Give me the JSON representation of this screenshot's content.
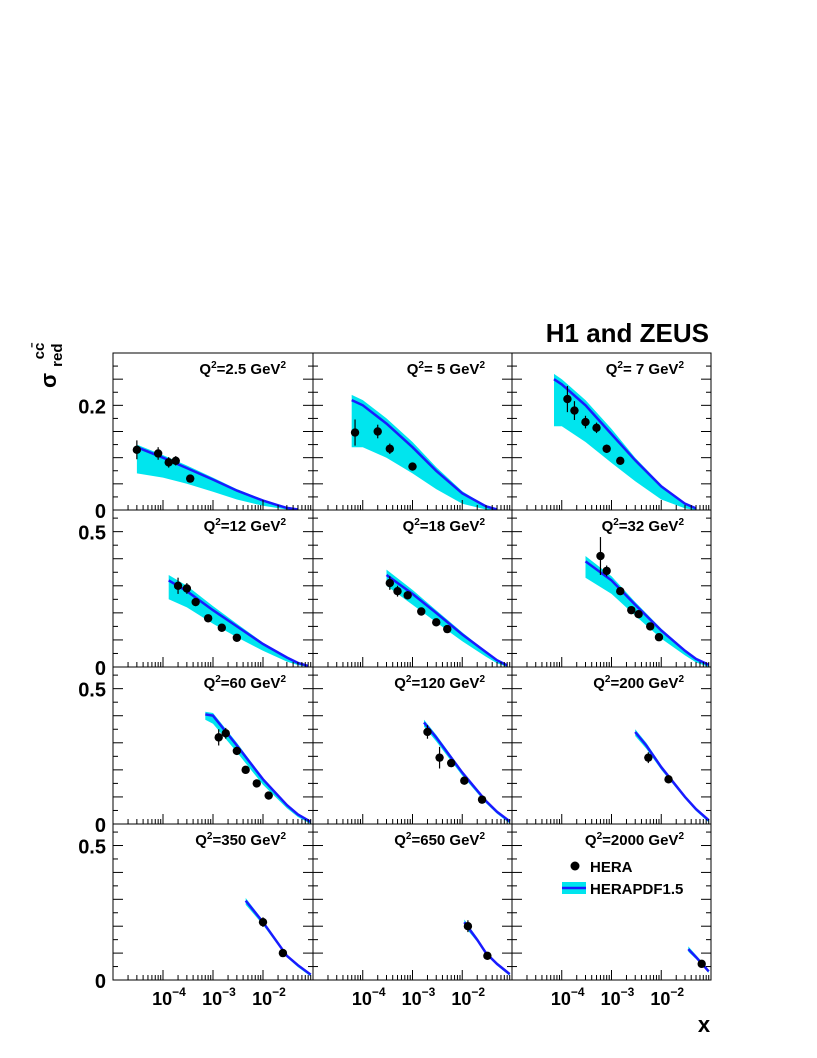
{
  "figure": {
    "title": "H1 and ZEUS",
    "ylabel": {
      "sigma": "σ",
      "superscript": "cc̄",
      "subscript": "red"
    },
    "xlabel": "x",
    "legend": {
      "data": "HERA",
      "theory": "HERAPDF1.5",
      "placement": "bottom-right panel"
    }
  },
  "chart_data": [
    {
      "type": "scatter",
      "panel": "q2-2.5",
      "label": "Q²=2.5 GeV²",
      "q2_text": "2.5",
      "ylim": [
        0,
        0.3
      ],
      "xlim": [
        1e-05,
        0.1
      ],
      "x_scale": "log",
      "yticks": [
        0,
        0.2
      ],
      "ytick_labels": [
        "0",
        "0.2"
      ],
      "xticks": [
        0.0001,
        0.001,
        0.01
      ],
      "xtick_labels": [
        "10⁻⁴",
        "10⁻³",
        "10⁻²"
      ],
      "points": [
        {
          "x": 3e-05,
          "y": 0.115,
          "err": 0.018
        },
        {
          "x": 8e-05,
          "y": 0.108,
          "err": 0.012
        },
        {
          "x": 0.00013,
          "y": 0.091,
          "err": 0.01
        },
        {
          "x": 0.00018,
          "y": 0.094,
          "err": 0.009
        },
        {
          "x": 0.00035,
          "y": 0.06,
          "err": 0.006
        }
      ],
      "curve": [
        [
          3e-05,
          0.12
        ],
        [
          0.0001,
          0.1
        ],
        [
          0.0003,
          0.08
        ],
        [
          0.001,
          0.058
        ],
        [
          0.003,
          0.037
        ],
        [
          0.01,
          0.018
        ],
        [
          0.02,
          0.009
        ],
        [
          0.03,
          0.004
        ],
        [
          0.05,
          0.001
        ]
      ],
      "band": [
        [
          3e-05,
          0.125,
          0.07
        ],
        [
          0.0001,
          0.105,
          0.062
        ],
        [
          0.0003,
          0.085,
          0.05
        ],
        [
          0.001,
          0.062,
          0.035
        ],
        [
          0.003,
          0.04,
          0.02
        ],
        [
          0.01,
          0.02,
          0.008
        ],
        [
          0.03,
          0.005,
          0.001
        ],
        [
          0.05,
          0.001,
          0
        ]
      ]
    },
    {
      "type": "scatter",
      "panel": "q2-5",
      "label": "Q²= 5 GeV²",
      "q2_text": " 5",
      "ylim": [
        0,
        0.3
      ],
      "xlim": [
        1e-05,
        0.1
      ],
      "x_scale": "log",
      "points": [
        {
          "x": 7e-05,
          "y": 0.148,
          "err": 0.025
        },
        {
          "x": 0.0002,
          "y": 0.15,
          "err": 0.013
        },
        {
          "x": 0.00035,
          "y": 0.117,
          "err": 0.01
        },
        {
          "x": 0.001,
          "y": 0.083,
          "err": 0.007
        }
      ],
      "curve": [
        [
          6e-05,
          0.21
        ],
        [
          0.0001,
          0.2
        ],
        [
          0.0003,
          0.165
        ],
        [
          0.001,
          0.12
        ],
        [
          0.003,
          0.075
        ],
        [
          0.01,
          0.032
        ],
        [
          0.03,
          0.007
        ],
        [
          0.05,
          0.001
        ]
      ],
      "band": [
        [
          6e-05,
          0.22,
          0.12
        ],
        [
          0.0001,
          0.21,
          0.12
        ],
        [
          0.0003,
          0.175,
          0.1
        ],
        [
          0.001,
          0.13,
          0.07
        ],
        [
          0.003,
          0.082,
          0.04
        ],
        [
          0.01,
          0.036,
          0.012
        ],
        [
          0.03,
          0.008,
          0.001
        ],
        [
          0.05,
          0.001,
          0
        ]
      ]
    },
    {
      "type": "scatter",
      "panel": "q2-7",
      "label": "Q²= 7 GeV²",
      "q2_text": " 7",
      "ylim": [
        0,
        0.3
      ],
      "xlim": [
        1e-05,
        0.1
      ],
      "x_scale": "log",
      "points": [
        {
          "x": 0.00013,
          "y": 0.212,
          "err": 0.025
        },
        {
          "x": 0.00018,
          "y": 0.19,
          "err": 0.018
        },
        {
          "x": 0.0003,
          "y": 0.168,
          "err": 0.012
        },
        {
          "x": 0.0005,
          "y": 0.157,
          "err": 0.01
        },
        {
          "x": 0.0008,
          "y": 0.117,
          "err": 0.008
        },
        {
          "x": 0.0015,
          "y": 0.094,
          "err": 0.007
        }
      ],
      "curve": [
        [
          7e-05,
          0.25
        ],
        [
          0.0001,
          0.24
        ],
        [
          0.0003,
          0.2
        ],
        [
          0.001,
          0.145
        ],
        [
          0.003,
          0.095
        ],
        [
          0.01,
          0.045
        ],
        [
          0.03,
          0.012
        ],
        [
          0.05,
          0.003
        ]
      ],
      "band": [
        [
          7e-05,
          0.26,
          0.16
        ],
        [
          0.0001,
          0.25,
          0.16
        ],
        [
          0.0003,
          0.21,
          0.13
        ],
        [
          0.001,
          0.155,
          0.09
        ],
        [
          0.003,
          0.1,
          0.055
        ],
        [
          0.01,
          0.048,
          0.02
        ],
        [
          0.03,
          0.013,
          0.003
        ],
        [
          0.05,
          0.003,
          0
        ]
      ]
    },
    {
      "type": "scatter",
      "panel": "q2-12",
      "label": "Q²=12 GeV²",
      "q2_text": "12",
      "ylim": [
        0,
        0.58
      ],
      "xlim": [
        1e-05,
        0.1
      ],
      "x_scale": "log",
      "yticks": [
        0,
        0.5
      ],
      "ytick_labels": [
        "0",
        "0.5"
      ],
      "points": [
        {
          "x": 0.0002,
          "y": 0.3,
          "err": 0.03
        },
        {
          "x": 0.0003,
          "y": 0.29,
          "err": 0.02
        },
        {
          "x": 0.00045,
          "y": 0.24,
          "err": 0.015
        },
        {
          "x": 0.0008,
          "y": 0.18,
          "err": 0.012
        },
        {
          "x": 0.0015,
          "y": 0.145,
          "err": 0.01
        },
        {
          "x": 0.003,
          "y": 0.108,
          "err": 0.008
        }
      ],
      "curve": [
        [
          0.00013,
          0.32
        ],
        [
          0.0003,
          0.28
        ],
        [
          0.001,
          0.21
        ],
        [
          0.003,
          0.15
        ],
        [
          0.01,
          0.085
        ],
        [
          0.03,
          0.035
        ],
        [
          0.05,
          0.015
        ],
        [
          0.08,
          0.004
        ]
      ],
      "band": [
        [
          0.00013,
          0.34,
          0.25
        ],
        [
          0.0003,
          0.3,
          0.22
        ],
        [
          0.001,
          0.225,
          0.16
        ],
        [
          0.003,
          0.16,
          0.11
        ],
        [
          0.01,
          0.09,
          0.06
        ],
        [
          0.03,
          0.038,
          0.02
        ],
        [
          0.05,
          0.016,
          0.007
        ],
        [
          0.08,
          0.004,
          0
        ]
      ]
    },
    {
      "type": "scatter",
      "panel": "q2-18",
      "label": "Q²=18 GeV²",
      "q2_text": "18",
      "ylim": [
        0,
        0.58
      ],
      "xlim": [
        1e-05,
        0.1
      ],
      "x_scale": "log",
      "points": [
        {
          "x": 0.00035,
          "y": 0.31,
          "err": 0.025
        },
        {
          "x": 0.0005,
          "y": 0.28,
          "err": 0.02
        },
        {
          "x": 0.0008,
          "y": 0.265,
          "err": 0.015
        },
        {
          "x": 0.0015,
          "y": 0.205,
          "err": 0.012
        },
        {
          "x": 0.003,
          "y": 0.165,
          "err": 0.01
        },
        {
          "x": 0.005,
          "y": 0.14,
          "err": 0.008
        }
      ],
      "curve": [
        [
          0.0003,
          0.34
        ],
        [
          0.001,
          0.27
        ],
        [
          0.003,
          0.2
        ],
        [
          0.01,
          0.12
        ],
        [
          0.03,
          0.055
        ],
        [
          0.05,
          0.025
        ],
        [
          0.08,
          0.006
        ]
      ],
      "band": [
        [
          0.0003,
          0.36,
          0.3
        ],
        [
          0.001,
          0.285,
          0.23
        ],
        [
          0.003,
          0.21,
          0.165
        ],
        [
          0.01,
          0.128,
          0.095
        ],
        [
          0.03,
          0.058,
          0.038
        ],
        [
          0.05,
          0.027,
          0.014
        ],
        [
          0.08,
          0.006,
          0
        ]
      ]
    },
    {
      "type": "scatter",
      "panel": "q2-32",
      "label": "Q²=32 GeV²",
      "q2_text": "32",
      "ylim": [
        0,
        0.58
      ],
      "xlim": [
        1e-05,
        0.1
      ],
      "x_scale": "log",
      "points": [
        {
          "x": 0.0006,
          "y": 0.41,
          "err": 0.07
        },
        {
          "x": 0.0008,
          "y": 0.355,
          "err": 0.02
        },
        {
          "x": 0.0015,
          "y": 0.28,
          "err": 0.012
        },
        {
          "x": 0.0025,
          "y": 0.21,
          "err": 0.01
        },
        {
          "x": 0.0035,
          "y": 0.195,
          "err": 0.008
        },
        {
          "x": 0.006,
          "y": 0.15,
          "err": 0.008
        },
        {
          "x": 0.009,
          "y": 0.11,
          "err": 0.008
        }
      ],
      "curve": [
        [
          0.0003,
          0.39
        ],
        [
          0.001,
          0.32
        ],
        [
          0.003,
          0.23
        ],
        [
          0.01,
          0.135
        ],
        [
          0.03,
          0.06
        ],
        [
          0.05,
          0.03
        ],
        [
          0.09,
          0.008
        ]
      ],
      "band": [
        [
          0.0003,
          0.41,
          0.33
        ],
        [
          0.001,
          0.335,
          0.27
        ],
        [
          0.003,
          0.24,
          0.19
        ],
        [
          0.01,
          0.142,
          0.105
        ],
        [
          0.03,
          0.064,
          0.043
        ],
        [
          0.05,
          0.032,
          0.017
        ],
        [
          0.09,
          0.008,
          0
        ]
      ]
    },
    {
      "type": "scatter",
      "panel": "q2-60",
      "label": "Q²=60 GeV²",
      "q2_text": "60",
      "ylim": [
        0,
        0.58
      ],
      "xlim": [
        1e-05,
        0.1
      ],
      "x_scale": "log",
      "yticks": [
        0,
        0.5
      ],
      "ytick_labels": [
        "0",
        "0.5"
      ],
      "points": [
        {
          "x": 0.0013,
          "y": 0.32,
          "err": 0.03
        },
        {
          "x": 0.0018,
          "y": 0.335,
          "err": 0.02
        },
        {
          "x": 0.003,
          "y": 0.27,
          "err": 0.015
        },
        {
          "x": 0.0045,
          "y": 0.2,
          "err": 0.012
        },
        {
          "x": 0.0075,
          "y": 0.15,
          "err": 0.01
        },
        {
          "x": 0.013,
          "y": 0.105,
          "err": 0.008
        }
      ],
      "curve": [
        [
          0.0007,
          0.405
        ],
        [
          0.001,
          0.4
        ],
        [
          0.003,
          0.29
        ],
        [
          0.01,
          0.165
        ],
        [
          0.03,
          0.07
        ],
        [
          0.05,
          0.035
        ],
        [
          0.09,
          0.008
        ]
      ],
      "band": [
        [
          0.0007,
          0.415,
          0.385
        ],
        [
          0.001,
          0.41,
          0.37
        ],
        [
          0.003,
          0.3,
          0.265
        ],
        [
          0.01,
          0.17,
          0.145
        ],
        [
          0.03,
          0.073,
          0.058
        ],
        [
          0.05,
          0.037,
          0.026
        ],
        [
          0.09,
          0.008,
          0
        ]
      ]
    },
    {
      "type": "scatter",
      "panel": "q2-120",
      "label": "Q²=120 GeV²",
      "q2_text": "120",
      "ylim": [
        0,
        0.58
      ],
      "xlim": [
        1e-05,
        0.1
      ],
      "x_scale": "log",
      "points": [
        {
          "x": 0.002,
          "y": 0.34,
          "err": 0.025
        },
        {
          "x": 0.0035,
          "y": 0.245,
          "err": 0.04
        },
        {
          "x": 0.006,
          "y": 0.225,
          "err": 0.015
        },
        {
          "x": 0.011,
          "y": 0.16,
          "err": 0.01
        },
        {
          "x": 0.025,
          "y": 0.09,
          "err": 0.008
        }
      ],
      "curve": [
        [
          0.0017,
          0.375
        ],
        [
          0.003,
          0.32
        ],
        [
          0.01,
          0.19
        ],
        [
          0.03,
          0.085
        ],
        [
          0.05,
          0.045
        ],
        [
          0.09,
          0.01
        ]
      ],
      "band": [
        [
          0.0017,
          0.385,
          0.36
        ],
        [
          0.003,
          0.33,
          0.305
        ],
        [
          0.01,
          0.196,
          0.178
        ],
        [
          0.03,
          0.089,
          0.077
        ],
        [
          0.05,
          0.048,
          0.038
        ],
        [
          0.09,
          0.011,
          0.002
        ]
      ]
    },
    {
      "type": "scatter",
      "panel": "q2-200",
      "label": "Q²=200 GeV²",
      "q2_text": "200",
      "ylim": [
        0,
        0.58
      ],
      "xlim": [
        1e-05,
        0.1
      ],
      "x_scale": "log",
      "points": [
        {
          "x": 0.0055,
          "y": 0.245,
          "err": 0.02
        },
        {
          "x": 0.014,
          "y": 0.165,
          "err": 0.012
        }
      ],
      "curve": [
        [
          0.003,
          0.34
        ],
        [
          0.005,
          0.29
        ],
        [
          0.01,
          0.21
        ],
        [
          0.03,
          0.1
        ],
        [
          0.05,
          0.055
        ],
        [
          0.09,
          0.014
        ]
      ],
      "band": [
        [
          0.003,
          0.35,
          0.325
        ],
        [
          0.005,
          0.3,
          0.278
        ],
        [
          0.01,
          0.217,
          0.2
        ],
        [
          0.03,
          0.104,
          0.093
        ],
        [
          0.05,
          0.058,
          0.048
        ],
        [
          0.09,
          0.015,
          0.006
        ]
      ]
    },
    {
      "type": "scatter",
      "panel": "q2-350",
      "label": "Q²=350 GeV²",
      "q2_text": "350",
      "ylim": [
        0,
        0.58
      ],
      "xlim": [
        1e-05,
        0.1
      ],
      "x_scale": "log",
      "yticks": [
        0,
        0.5
      ],
      "ytick_labels": [
        "0",
        "0.5"
      ],
      "points": [
        {
          "x": 0.01,
          "y": 0.215,
          "err": 0.018
        },
        {
          "x": 0.025,
          "y": 0.1,
          "err": 0.01
        }
      ],
      "curve": [
        [
          0.0045,
          0.295
        ],
        [
          0.01,
          0.215
        ],
        [
          0.03,
          0.09
        ],
        [
          0.05,
          0.055
        ],
        [
          0.09,
          0.02
        ]
      ],
      "band": [
        [
          0.0045,
          0.305,
          0.28
        ],
        [
          0.01,
          0.222,
          0.205
        ],
        [
          0.03,
          0.095,
          0.084
        ],
        [
          0.05,
          0.058,
          0.048
        ],
        [
          0.09,
          0.022,
          0.013
        ]
      ]
    },
    {
      "type": "scatter",
      "panel": "q2-650",
      "label": "Q²=650 GeV²",
      "q2_text": "650",
      "ylim": [
        0,
        0.58
      ],
      "xlim": [
        1e-05,
        0.1
      ],
      "x_scale": "log",
      "points": [
        {
          "x": 0.013,
          "y": 0.2,
          "err": 0.022
        },
        {
          "x": 0.032,
          "y": 0.09,
          "err": 0.01
        }
      ],
      "curve": [
        [
          0.011,
          0.215
        ],
        [
          0.02,
          0.15
        ],
        [
          0.03,
          0.1
        ],
        [
          0.05,
          0.06
        ],
        [
          0.09,
          0.022
        ]
      ],
      "band": [
        [
          0.011,
          0.225,
          0.2
        ],
        [
          0.02,
          0.157,
          0.142
        ],
        [
          0.03,
          0.105,
          0.094
        ],
        [
          0.05,
          0.064,
          0.054
        ],
        [
          0.09,
          0.024,
          0.015
        ]
      ]
    },
    {
      "type": "scatter",
      "panel": "q2-2000",
      "label": "Q²=2000 GeV²",
      "q2_text": "2000",
      "ylim": [
        0,
        0.58
      ],
      "xlim": [
        1e-05,
        0.1
      ],
      "x_scale": "log",
      "points": [
        {
          "x": 0.065,
          "y": 0.06,
          "err": 0.01
        }
      ],
      "curve": [
        [
          0.035,
          0.115
        ],
        [
          0.05,
          0.085
        ],
        [
          0.07,
          0.055
        ],
        [
          0.09,
          0.032
        ]
      ],
      "band": [
        [
          0.035,
          0.125,
          0.105
        ],
        [
          0.05,
          0.093,
          0.078
        ],
        [
          0.07,
          0.062,
          0.05
        ],
        [
          0.09,
          0.037,
          0.026
        ]
      ]
    }
  ],
  "colors": {
    "band": "#00e5ee",
    "curve": "#1a1aff",
    "points": "#000000",
    "frame": "#000000"
  }
}
